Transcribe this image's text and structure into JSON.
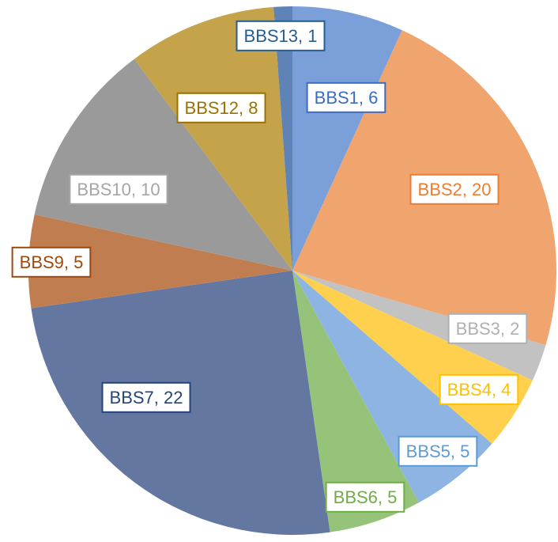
{
  "chart_data": {
    "type": "pie",
    "title": "",
    "categories": [
      "BBS1",
      "BBS2",
      "BBS3",
      "BBS4",
      "BBS5",
      "BBS6",
      "BBS7",
      "BBS9",
      "BBS10",
      "BBS12",
      "BBS13"
    ],
    "values": [
      6,
      20,
      2,
      4,
      5,
      5,
      22,
      5,
      10,
      8,
      1
    ],
    "labels": [
      "BBS1, 6",
      "BBS2, 20",
      "BBS3, 2",
      "BBS4, 4",
      "BBS5, 5",
      "BBS6, 5",
      "BBS7, 22",
      "BBS9, 5",
      "BBS10, 10",
      "BBS12, 8",
      "BBS13, 1"
    ],
    "colors": [
      "#7b9fd8",
      "#f0a46e",
      "#c2c2c2",
      "#ffd04d",
      "#8db4e2",
      "#96c37a",
      "#6477a0",
      "#c07d50",
      "#9a9a9a",
      "#c4a34a",
      "#5f83b6"
    ],
    "label_colors": [
      "#3b6cc0",
      "#ed7d31",
      "#b0b0b0",
      "#ffc000",
      "#5b9bd5",
      "#70ad47",
      "#264478",
      "#9e480e",
      "#a5a5a5",
      "#997300",
      "#255e91"
    ],
    "start_angle_deg": 0,
    "direction": "clockwise",
    "legend": "none"
  }
}
